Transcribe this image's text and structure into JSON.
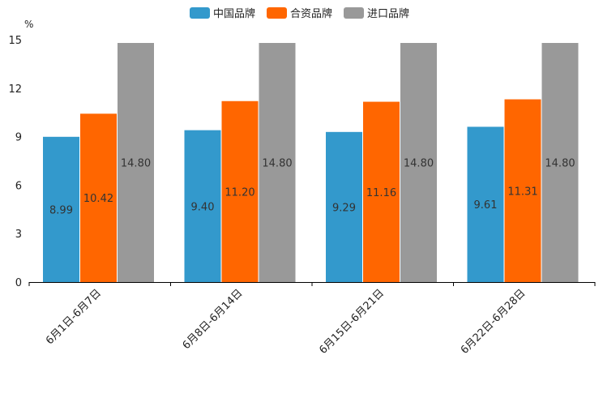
{
  "chart_data": {
    "type": "bar",
    "title": "",
    "unit_label": "%",
    "xlabel": "",
    "ylabel": "%",
    "ylim": [
      0,
      15
    ],
    "yticks": [
      0,
      3,
      6,
      9,
      12,
      15
    ],
    "categories": [
      "6月1日-6月7日",
      "6月8日-6月14日",
      "6月15日-6月21日",
      "6月22日-6月28日"
    ],
    "series": [
      {
        "name": "中国品牌",
        "color": "#3399cc",
        "values": [
          8.99,
          9.4,
          9.29,
          9.61
        ],
        "labels": [
          "8.99",
          "9.40",
          "9.29",
          "9.61"
        ]
      },
      {
        "name": "合资品牌",
        "color": "#ff6600",
        "values": [
          10.42,
          11.2,
          11.16,
          11.31
        ],
        "labels": [
          "10.42",
          "11.20",
          "11.16",
          "11.31"
        ]
      },
      {
        "name": "进口品牌",
        "color": "#999999",
        "values": [
          14.8,
          14.8,
          14.8,
          14.8
        ],
        "labels": [
          "14.80",
          "14.80",
          "14.80",
          "14.80"
        ]
      }
    ],
    "legend_position": "top-center",
    "grid": false
  }
}
